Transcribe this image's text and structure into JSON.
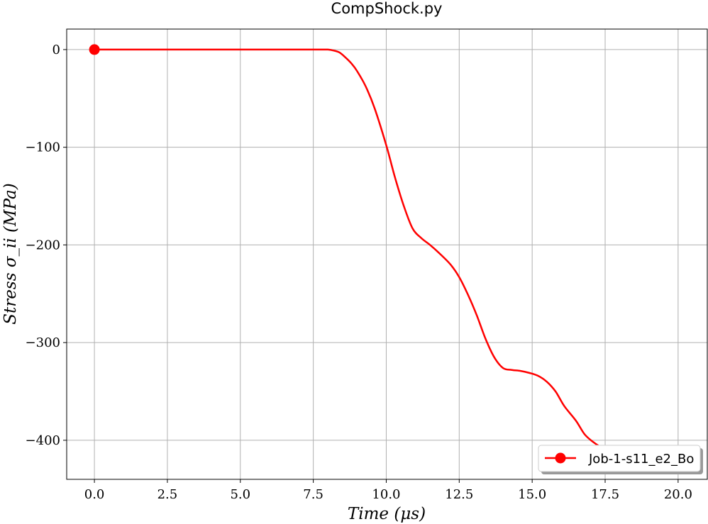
{
  "chart_data": {
    "type": "line",
    "title": "CompShock.py",
    "xlabel": "Time (μs)",
    "ylabel": "Stress σ_ii (MPa)",
    "xlim": [
      -0.95,
      21.0
    ],
    "ylim": [
      -440,
      21
    ],
    "xticks": [
      0.0,
      2.5,
      5.0,
      7.5,
      10.0,
      12.5,
      15.0,
      17.5,
      20.0
    ],
    "xtick_labels": [
      "0.0",
      "2.5",
      "5.0",
      "7.5",
      "10.0",
      "12.5",
      "15.0",
      "17.5",
      "20.0"
    ],
    "yticks": [
      0,
      -100,
      -200,
      -300,
      -400
    ],
    "ytick_labels": [
      "0",
      "−100",
      "−200",
      "−300",
      "−400"
    ],
    "grid": true,
    "legend_position": "lower-right",
    "series": [
      {
        "name": "Job-1-s11_e2_Bo",
        "color": "#ff0000",
        "marker": "circle",
        "marker_points": [
          [
            0.0,
            0
          ]
        ],
        "x": [
          0.0,
          1.0,
          2.0,
          3.0,
          4.0,
          5.0,
          6.0,
          7.0,
          7.5,
          7.8,
          8.0,
          8.2,
          8.4,
          8.6,
          8.8,
          9.0,
          9.3,
          9.6,
          10.0,
          10.3,
          10.6,
          10.9,
          11.2,
          11.5,
          11.8,
          12.2,
          12.5,
          12.8,
          13.1,
          13.4,
          13.7,
          14.0,
          14.3,
          14.6,
          14.9,
          15.2,
          15.5,
          15.8,
          16.1,
          16.5,
          16.8,
          17.1,
          17.4,
          17.7,
          18.0,
          18.3,
          18.6,
          18.9,
          19.2,
          19.5,
          19.8,
          20.0
        ],
        "y": [
          0,
          0,
          0,
          0,
          0,
          0,
          0,
          0,
          0,
          0,
          0,
          -1,
          -3,
          -8,
          -14,
          -22,
          -38,
          -60,
          -98,
          -131,
          -160,
          -183,
          -193,
          -200,
          -208,
          -220,
          -233,
          -251,
          -272,
          -296,
          -315,
          -326,
          -328,
          -329,
          -331,
          -334,
          -340,
          -350,
          -365,
          -380,
          -394,
          -402,
          -408,
          -413,
          -417,
          -419,
          -419,
          -417,
          -414,
          -412,
          -412,
          -412
        ]
      }
    ]
  }
}
